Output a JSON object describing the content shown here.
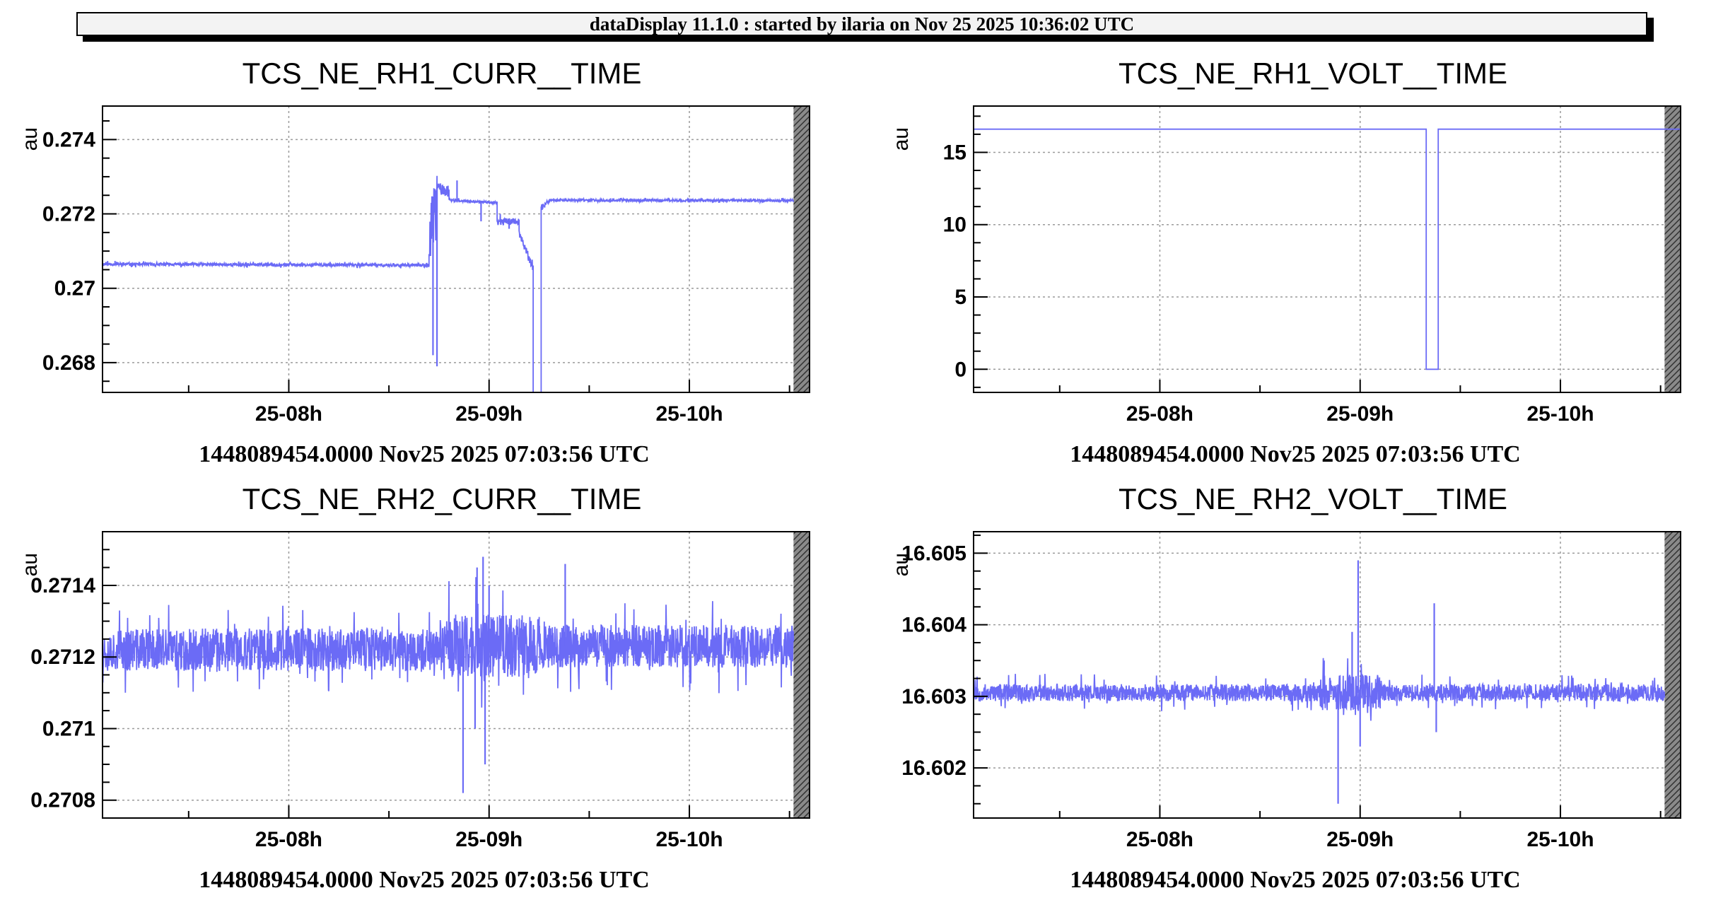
{
  "header": {
    "title": "dataDisplay 11.1.0 : started by ilaria on Nov 25 2025 10:36:02 UTC"
  },
  "colors": {
    "trace": "#6b6bf6",
    "grid": "#9a9a9a",
    "frame": "#000000",
    "hatch": "#555555"
  },
  "chart_data": [
    {
      "type": "line",
      "title": "TCS_NE_RH1_CURR__TIME",
      "ylabel": "au",
      "xlabel": "",
      "footer": "1448089454.0000 Nov25 2025 07:03:56 UTC",
      "x_unit": "hours",
      "xlim": [
        7.07,
        10.6
      ],
      "x_gray_from": 10.52,
      "ylim": [
        0.2672,
        0.2749
      ],
      "x_ticks": [
        {
          "v": 8,
          "label": "25-08h"
        },
        {
          "v": 9,
          "label": "25-09h"
        },
        {
          "v": 10,
          "label": "25-10h"
        }
      ],
      "y_ticks": [
        {
          "v": 0.268,
          "label": "0.268"
        },
        {
          "v": 0.27,
          "label": "0.27"
        },
        {
          "v": 0.272,
          "label": "0.272"
        },
        {
          "v": 0.274,
          "label": "0.274"
        }
      ],
      "grid": true,
      "series": [
        {
          "seed": 11,
          "segments": [
            {
              "x": [
                7.07,
                8.7
              ],
              "y": [
                0.27065,
                0.27062
              ],
              "noise": 4e-05
            },
            {
              "x": [
                8.7,
                8.74
              ],
              "y": [
                0.2712,
                0.2725
              ],
              "noise": 0.0008
            },
            {
              "x": [
                8.74,
                8.8
              ],
              "y": [
                0.2727,
                0.2726
              ],
              "noise": 0.00015
            },
            {
              "x": [
                8.8,
                9.04
              ],
              "y": [
                0.27237,
                0.2723
              ],
              "noise": 3e-05
            },
            {
              "x": [
                9.04,
                9.15
              ],
              "y": [
                0.2718,
                0.2718
              ],
              "noise": 0.0001
            },
            {
              "x": [
                9.15,
                9.22
              ],
              "y": [
                0.2715,
                0.2705
              ],
              "noise": 0.0001
            },
            {
              "x": [
                9.22,
                9.26
              ],
              "y": [
                0.2672,
                0.2672
              ],
              "noise": 0
            },
            {
              "x": [
                9.26,
                9.3
              ],
              "y": [
                0.2722,
                0.27235
              ],
              "noise": 5e-05
            },
            {
              "x": [
                9.3,
                10.52
              ],
              "y": [
                0.27237,
                0.27236
              ],
              "noise": 3e-05
            }
          ],
          "spikes": [
            {
              "x": 8.72,
              "y": 0.2682
            },
            {
              "x": 8.74,
              "y": 0.2679
            },
            {
              "x": 8.76,
              "y": 0.2726
            },
            {
              "x": 8.84,
              "y": 0.2729
            },
            {
              "x": 8.96,
              "y": 0.2718
            },
            {
              "x": 9.1,
              "y": 0.2716
            }
          ]
        }
      ]
    },
    {
      "type": "line",
      "title": "TCS_NE_RH1_VOLT__TIME",
      "ylabel": "au",
      "xlabel": "",
      "footer": "1448089454.0000 Nov25 2025 07:03:56 UTC",
      "x_unit": "hours",
      "xlim": [
        7.07,
        10.6
      ],
      "x_gray_from": 10.52,
      "ylim": [
        -1.6,
        18.2
      ],
      "x_ticks": [
        {
          "v": 8,
          "label": "25-08h"
        },
        {
          "v": 9,
          "label": "25-09h"
        },
        {
          "v": 10,
          "label": "25-10h"
        }
      ],
      "y_ticks": [
        {
          "v": 0,
          "label": "0"
        },
        {
          "v": 5,
          "label": "5"
        },
        {
          "v": 10,
          "label": "10"
        },
        {
          "v": 15,
          "label": "15"
        }
      ],
      "grid": true,
      "series": [
        {
          "seed": 23,
          "segments": [
            {
              "x": [
                7.07,
                9.33
              ],
              "y": [
                16.6,
                16.6
              ],
              "noise": 0
            },
            {
              "x": [
                9.33,
                9.39
              ],
              "y": [
                0,
                0
              ],
              "noise": 0
            },
            {
              "x": [
                9.39,
                10.6
              ],
              "y": [
                16.6,
                16.6
              ],
              "noise": 0
            }
          ],
          "spikes": []
        }
      ]
    },
    {
      "type": "line",
      "title": "TCS_NE_RH2_CURR__TIME",
      "ylabel": "au",
      "xlabel": "",
      "footer": "1448089454.0000 Nov25 2025 07:03:56 UTC",
      "x_unit": "hours",
      "xlim": [
        7.07,
        10.6
      ],
      "x_gray_from": 10.52,
      "ylim": [
        0.27075,
        0.27155
      ],
      "x_ticks": [
        {
          "v": 8,
          "label": "25-08h"
        },
        {
          "v": 9,
          "label": "25-09h"
        },
        {
          "v": 10,
          "label": "25-10h"
        }
      ],
      "y_ticks": [
        {
          "v": 0.2708,
          "label": "0.2708"
        },
        {
          "v": 0.271,
          "label": "0.271"
        },
        {
          "v": 0.2712,
          "label": "0.2712"
        },
        {
          "v": 0.2714,
          "label": "0.2714"
        }
      ],
      "grid": true,
      "series": [
        {
          "seed": 37,
          "segments": [
            {
              "x": [
                7.07,
                8.75
              ],
              "y": [
                0.27122,
                0.27122
              ],
              "noise": 6e-05
            },
            {
              "x": [
                8.75,
                9.25
              ],
              "y": [
                0.27123,
                0.27123
              ],
              "noise": 9e-05
            },
            {
              "x": [
                9.25,
                10.52
              ],
              "y": [
                0.27123,
                0.27123
              ],
              "noise": 6e-05
            }
          ],
          "spikes": [
            {
              "x": 8.87,
              "y": 0.27082
            },
            {
              "x": 8.94,
              "y": 0.27145
            },
            {
              "x": 8.97,
              "y": 0.27148
            },
            {
              "x": 8.98,
              "y": 0.2709
            },
            {
              "x": 8.93,
              "y": 0.271
            },
            {
              "x": 9.38,
              "y": 0.27146
            },
            {
              "x": 9.0,
              "y": 0.2714
            }
          ]
        }
      ]
    },
    {
      "type": "line",
      "title": "TCS_NE_RH2_VOLT__TIME",
      "ylabel": "au",
      "xlabel": "",
      "footer": "1448089454.0000 Nov25 2025 07:03:56 UTC",
      "x_unit": "hours",
      "xlim": [
        7.07,
        10.6
      ],
      "x_gray_from": 10.52,
      "ylim": [
        16.6013,
        16.6053
      ],
      "x_ticks": [
        {
          "v": 8,
          "label": "25-08h"
        },
        {
          "v": 9,
          "label": "25-09h"
        },
        {
          "v": 10,
          "label": "25-10h"
        }
      ],
      "y_ticks": [
        {
          "v": 16.602,
          "label": "16.602"
        },
        {
          "v": 16.603,
          "label": "16.603"
        },
        {
          "v": 16.604,
          "label": "16.604"
        },
        {
          "v": 16.605,
          "label": "16.605"
        }
      ],
      "grid": true,
      "series": [
        {
          "seed": 53,
          "segments": [
            {
              "x": [
                7.07,
                8.8
              ],
              "y": [
                16.60305,
                16.60305
              ],
              "noise": 0.00012
            },
            {
              "x": [
                8.8,
                9.1
              ],
              "y": [
                16.60305,
                16.60305
              ],
              "noise": 0.00025
            },
            {
              "x": [
                9.1,
                10.52
              ],
              "y": [
                16.60305,
                16.60305
              ],
              "noise": 0.00012
            }
          ],
          "spikes": [
            {
              "x": 8.89,
              "y": 16.6015
            },
            {
              "x": 8.99,
              "y": 16.6049
            },
            {
              "x": 9.37,
              "y": 16.6043
            },
            {
              "x": 8.96,
              "y": 16.6039
            },
            {
              "x": 9.0,
              "y": 16.6023
            },
            {
              "x": 9.38,
              "y": 16.6025
            },
            {
              "x": 8.82,
              "y": 16.6035
            }
          ]
        }
      ]
    }
  ]
}
